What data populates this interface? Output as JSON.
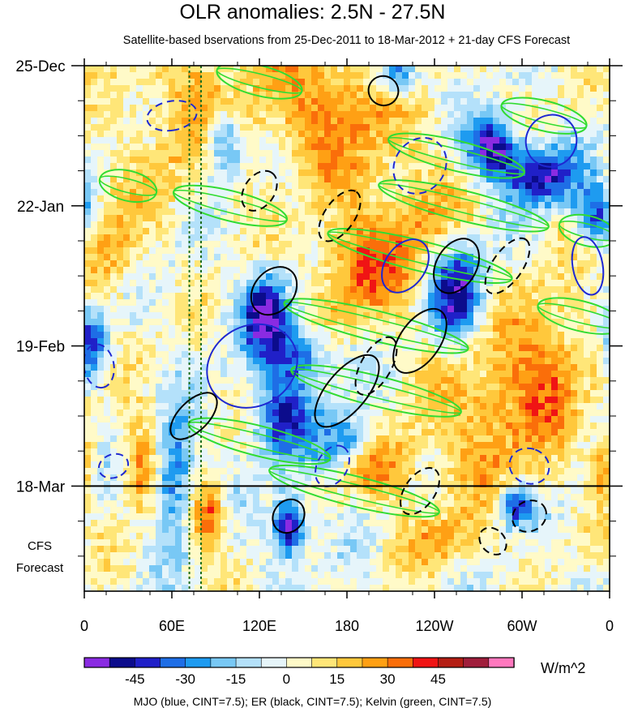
{
  "chart_data": {
    "type": "heatmap",
    "title": "OLR anomalies: 2.5N - 27.5N",
    "subtitle": "Satellite-based bservations from 25-Dec-2011 to 18-Mar-2012 + 21-day CFS Forecast",
    "xlabel": "",
    "ylabel": "",
    "x_ticks": [
      "0",
      "60E",
      "120E",
      "180",
      "120W",
      "60W",
      "0"
    ],
    "x_range_deg_east": [
      0,
      360
    ],
    "y_ticks": [
      "25-Dec",
      "22-Jan",
      "19-Feb",
      "18-Mar"
    ],
    "y_forecast_label_line1": "CFS",
    "y_forecast_label_line2": "Forecast",
    "time_range_days": [
      0,
      105
    ],
    "observation_end_day": 84,
    "colorbar": {
      "labels": [
        "-45",
        "-30",
        "-15",
        "0",
        "15",
        "30",
        "45"
      ],
      "levels": [
        -52.5,
        -45,
        -37.5,
        -30,
        -22.5,
        -15,
        -7.5,
        0,
        7.5,
        15,
        22.5,
        30,
        37.5,
        45,
        52.5
      ],
      "colors": [
        "#8a2be2",
        "#0c0c8c",
        "#2020c8",
        "#1e6ee6",
        "#1e9bf0",
        "#78c8f5",
        "#b4e1fa",
        "#e6f5fa",
        "#fffac8",
        "#ffe678",
        "#ffc83c",
        "#ffa014",
        "#fa6e0a",
        "#f01414",
        "#b41e14",
        "#a01e3c",
        "#ff78be"
      ],
      "units": "W/m^2"
    },
    "field_features": [
      {
        "lon": 280,
        "day": 16,
        "amp": -55,
        "sx": 12,
        "st": 4
      },
      {
        "lon": 312,
        "day": 22,
        "amp": -50,
        "sx": 18,
        "st": 4
      },
      {
        "lon": 95,
        "day": 15,
        "amp": -45,
        "sx": 10,
        "st": 5
      },
      {
        "lon": 125,
        "day": 50,
        "amp": -50,
        "sx": 12,
        "st": 6
      },
      {
        "lon": 255,
        "day": 45,
        "amp": -55,
        "sx": 14,
        "st": 7
      },
      {
        "lon": 150,
        "day": 58,
        "amp": -35,
        "sx": 14,
        "st": 4
      },
      {
        "lon": 60,
        "day": 82,
        "amp": -40,
        "sx": 10,
        "st": 8
      },
      {
        "lon": 140,
        "day": 92,
        "amp": -60,
        "sx": 8,
        "st": 4
      },
      {
        "lon": 135,
        "day": 70,
        "amp": -40,
        "sx": 14,
        "st": 6
      },
      {
        "lon": 295,
        "day": 88,
        "amp": -45,
        "sx": 8,
        "st": 3
      },
      {
        "lon": 5,
        "day": 55,
        "amp": -40,
        "sx": 8,
        "st": 5
      },
      {
        "lon": 180,
        "day": 75,
        "amp": -35,
        "sx": 15,
        "st": 4
      },
      {
        "lon": 350,
        "day": 30,
        "amp": -40,
        "sx": 10,
        "st": 4
      },
      {
        "lon": 215,
        "day": 2,
        "amp": -45,
        "sx": 10,
        "st": 3
      },
      {
        "lon": 170,
        "day": 8,
        "amp": 30,
        "sx": 35,
        "st": 10
      },
      {
        "lon": 75,
        "day": 10,
        "amp": 25,
        "sx": 25,
        "st": 10
      },
      {
        "lon": 220,
        "day": 35,
        "amp": 25,
        "sx": 30,
        "st": 10
      },
      {
        "lon": 280,
        "day": 70,
        "amp": 25,
        "sx": 30,
        "st": 12
      },
      {
        "lon": 40,
        "day": 80,
        "amp": 35,
        "sx": 10,
        "st": 6
      },
      {
        "lon": 85,
        "day": 90,
        "amp": 40,
        "sx": 8,
        "st": 5
      },
      {
        "lon": 205,
        "day": 80,
        "amp": 30,
        "sx": 18,
        "st": 5
      },
      {
        "lon": 180,
        "day": 42,
        "amp": 20,
        "sx": 20,
        "st": 8
      },
      {
        "lon": 320,
        "day": 58,
        "amp": 25,
        "sx": 20,
        "st": 10
      },
      {
        "lon": 20,
        "day": 35,
        "amp": 20,
        "sx": 15,
        "st": 10
      },
      {
        "lon": 355,
        "day": 80,
        "amp": 30,
        "sx": 6,
        "st": 5
      },
      {
        "lon": 245,
        "day": 95,
        "amp": 20,
        "sx": 20,
        "st": 4
      }
    ],
    "overlays": [
      {
        "name": "MJO",
        "color": "#1e28d2",
        "cint": "7.5"
      },
      {
        "name": "ER",
        "color": "#000000",
        "cint": "7.5"
      },
      {
        "name": "Kelvin",
        "color": "#32dc32",
        "cint": "7.5"
      }
    ],
    "reference_longitudes": [
      72,
      80
    ],
    "mjo_contours": [
      {
        "lon": 115,
        "day": 60,
        "angle": -30,
        "rx": 32,
        "ry": 8,
        "sign": 1
      },
      {
        "lon": 230,
        "day": 20,
        "angle": -55,
        "rx": 20,
        "ry": 5,
        "sign": -1
      },
      {
        "lon": 320,
        "day": 15,
        "angle": -60,
        "rx": 18,
        "ry": 5,
        "sign": 1
      },
      {
        "lon": 10,
        "day": 60,
        "angle": 80,
        "rx": 15,
        "ry": 3,
        "sign": -1
      },
      {
        "lon": 220,
        "day": 40,
        "angle": -55,
        "rx": 20,
        "ry": 4,
        "sign": 1
      },
      {
        "lon": 305,
        "day": 80,
        "angle": -70,
        "rx": 12,
        "ry": 4,
        "sign": -1
      },
      {
        "lon": 345,
        "day": 40,
        "angle": 80,
        "rx": 20,
        "ry": 3,
        "sign": 1
      },
      {
        "lon": 170,
        "day": 80,
        "angle": -60,
        "rx": 15,
        "ry": 3,
        "sign": -1
      },
      {
        "lon": 20,
        "day": 80,
        "angle": 70,
        "rx": 8,
        "ry": 3,
        "sign": -1
      },
      {
        "lon": 60,
        "day": 10,
        "angle": 80,
        "rx": 10,
        "ry": 5,
        "sign": -1
      }
    ],
    "er_contours": [
      {
        "lon": 180,
        "day": 65,
        "angle": -50,
        "rx": 30,
        "ry": 4,
        "sign": 1
      },
      {
        "lon": 130,
        "day": 45,
        "angle": -50,
        "rx": 18,
        "ry": 4,
        "sign": 1
      },
      {
        "lon": 255,
        "day": 40,
        "angle": -60,
        "rx": 20,
        "ry": 4,
        "sign": 1
      },
      {
        "lon": 230,
        "day": 55,
        "angle": -55,
        "rx": 25,
        "ry": 4,
        "sign": 1
      },
      {
        "lon": 140,
        "day": 90,
        "angle": -55,
        "rx": 12,
        "ry": 3,
        "sign": 1
      },
      {
        "lon": 175,
        "day": 30,
        "angle": -55,
        "rx": 20,
        "ry": 3,
        "sign": -1
      },
      {
        "lon": 230,
        "day": 85,
        "angle": -55,
        "rx": 18,
        "ry": 3,
        "sign": -1
      },
      {
        "lon": 290,
        "day": 40,
        "angle": -55,
        "rx": 22,
        "ry": 3,
        "sign": -1
      },
      {
        "lon": 200,
        "day": 60,
        "angle": -60,
        "rx": 22,
        "ry": 3,
        "sign": -1
      },
      {
        "lon": 305,
        "day": 90,
        "angle": -30,
        "rx": 12,
        "ry": 3,
        "sign": -1
      },
      {
        "lon": 75,
        "day": 70,
        "angle": -45,
        "rx": 20,
        "ry": 3,
        "sign": 1
      },
      {
        "lon": 120,
        "day": 25,
        "angle": -55,
        "rx": 15,
        "ry": 3,
        "sign": -1
      },
      {
        "lon": 205,
        "day": 5,
        "angle": -60,
        "rx": 10,
        "ry": 3,
        "sign": 1
      },
      {
        "lon": 280,
        "day": 95,
        "angle": -45,
        "rx": 8,
        "ry": 3,
        "sign": -1
      }
    ],
    "kelvin_bands": [
      {
        "lon": 255,
        "day": 18,
        "angle": 14,
        "rx": 48,
        "ry": 3
      },
      {
        "lon": 315,
        "day": 10,
        "angle": 14,
        "rx": 30,
        "ry": 3
      },
      {
        "lon": 200,
        "day": 52,
        "angle": 14,
        "rx": 65,
        "ry": 3
      },
      {
        "lon": 200,
        "day": 65,
        "angle": 14,
        "rx": 60,
        "ry": 3
      },
      {
        "lon": 230,
        "day": 38,
        "angle": 14,
        "rx": 65,
        "ry": 3
      },
      {
        "lon": 260,
        "day": 28,
        "angle": 14,
        "rx": 60,
        "ry": 3
      },
      {
        "lon": 185,
        "day": 85,
        "angle": 14,
        "rx": 60,
        "ry": 3
      },
      {
        "lon": 120,
        "day": 75,
        "angle": 14,
        "rx": 50,
        "ry": 3
      },
      {
        "lon": 100,
        "day": 28,
        "angle": 14,
        "rx": 40,
        "ry": 3
      },
      {
        "lon": 340,
        "day": 50,
        "angle": 14,
        "rx": 30,
        "ry": 3
      },
      {
        "lon": 120,
        "day": 3,
        "angle": 14,
        "rx": 30,
        "ry": 3
      },
      {
        "lon": 345,
        "day": 33,
        "angle": 14,
        "rx": 20,
        "ry": 3
      },
      {
        "lon": 30,
        "day": 24,
        "angle": 14,
        "rx": 20,
        "ry": 3
      }
    ]
  },
  "footer": "MJO (blue, CINT=7.5); ER (black, CINT=7.5); Kelvin (green, CINT=7.5)"
}
